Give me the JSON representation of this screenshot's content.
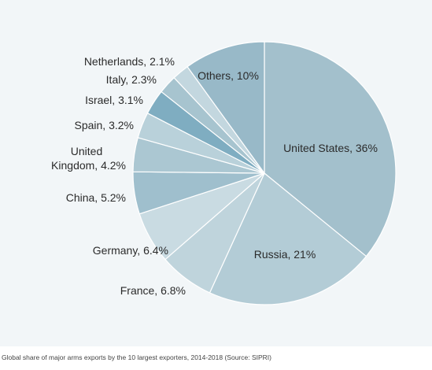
{
  "caption": "Global share of major arms exports by the 10 largest exporters, 2014-2018 (Source: SIPRI)",
  "chart_data": {
    "type": "pie",
    "unit": "%",
    "slices": [
      {
        "label": "United States, 36%",
        "value": 36,
        "color": "#a3c0cc"
      },
      {
        "label": "Russia, 21%",
        "value": 21,
        "color": "#b3ccd6"
      },
      {
        "label": "France, 6.8%",
        "value": 6.8,
        "color": "#bfd4dc"
      },
      {
        "label": "Germany, 6.4%",
        "value": 6.4,
        "color": "#c9dbe2"
      },
      {
        "label": "China, 5.2%",
        "value": 5.2,
        "color": "#9fbfcd"
      },
      {
        "label": "United Kingdom, 4.2%",
        "value": 4.2,
        "color": "#abc7d2"
      },
      {
        "label": "Spain, 3.2%",
        "value": 3.2,
        "color": "#b9d1da"
      },
      {
        "label": "Israel, 3.1%",
        "value": 3.1,
        "color": "#7fadc1"
      },
      {
        "label": "Italy, 2.3%",
        "value": 2.3,
        "color": "#a7c4cf"
      },
      {
        "label": "Netherlands, 2.1%",
        "value": 2.1,
        "color": "#c3d7df"
      },
      {
        "label": "Others, 10%",
        "value": 10,
        "color": "#98b9c8"
      }
    ]
  }
}
